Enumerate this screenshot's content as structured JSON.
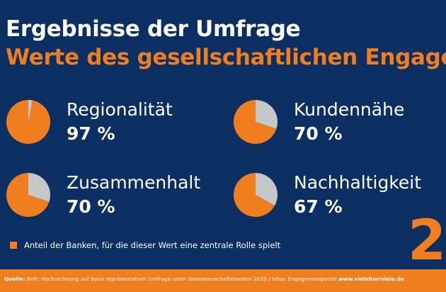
{
  "header": {
    "title": "Ergebnisse der Umfrage",
    "subtitle": "Werte des gesellschaftlichen Engager"
  },
  "colors": {
    "background": "#0b2f63",
    "accent": "#f07d1e",
    "remainder": "#c6c7c9",
    "text": "#ffffff"
  },
  "chart_data": {
    "type": "pie",
    "title": "Ergebnisse der Umfrage",
    "subtitle": "Werte des gesellschaftlichen Engager",
    "categories": [
      "Regionalität",
      "Kundennähe",
      "Zusammenhalt",
      "Nachhaltigkeit"
    ],
    "values": [
      97,
      70,
      70,
      67
    ],
    "value_labels": [
      "97 %",
      "70 %",
      "70 %",
      "67 %"
    ],
    "unit": "%",
    "legend": {
      "placement": "bottom-left",
      "entries": [
        "Anteil der Banken, für die dieser Wert eine zentrale Rolle spielt"
      ]
    }
  },
  "page_number": "2",
  "footer": {
    "source_label": "Quelle:",
    "source_text": " BVR; Hochrechnung auf Basis repräsentativer Umfrage unter Genossenschaftsbanken 2025 / Infos: Engagementportal ",
    "source_link": "www.vielefuerviele.de"
  }
}
